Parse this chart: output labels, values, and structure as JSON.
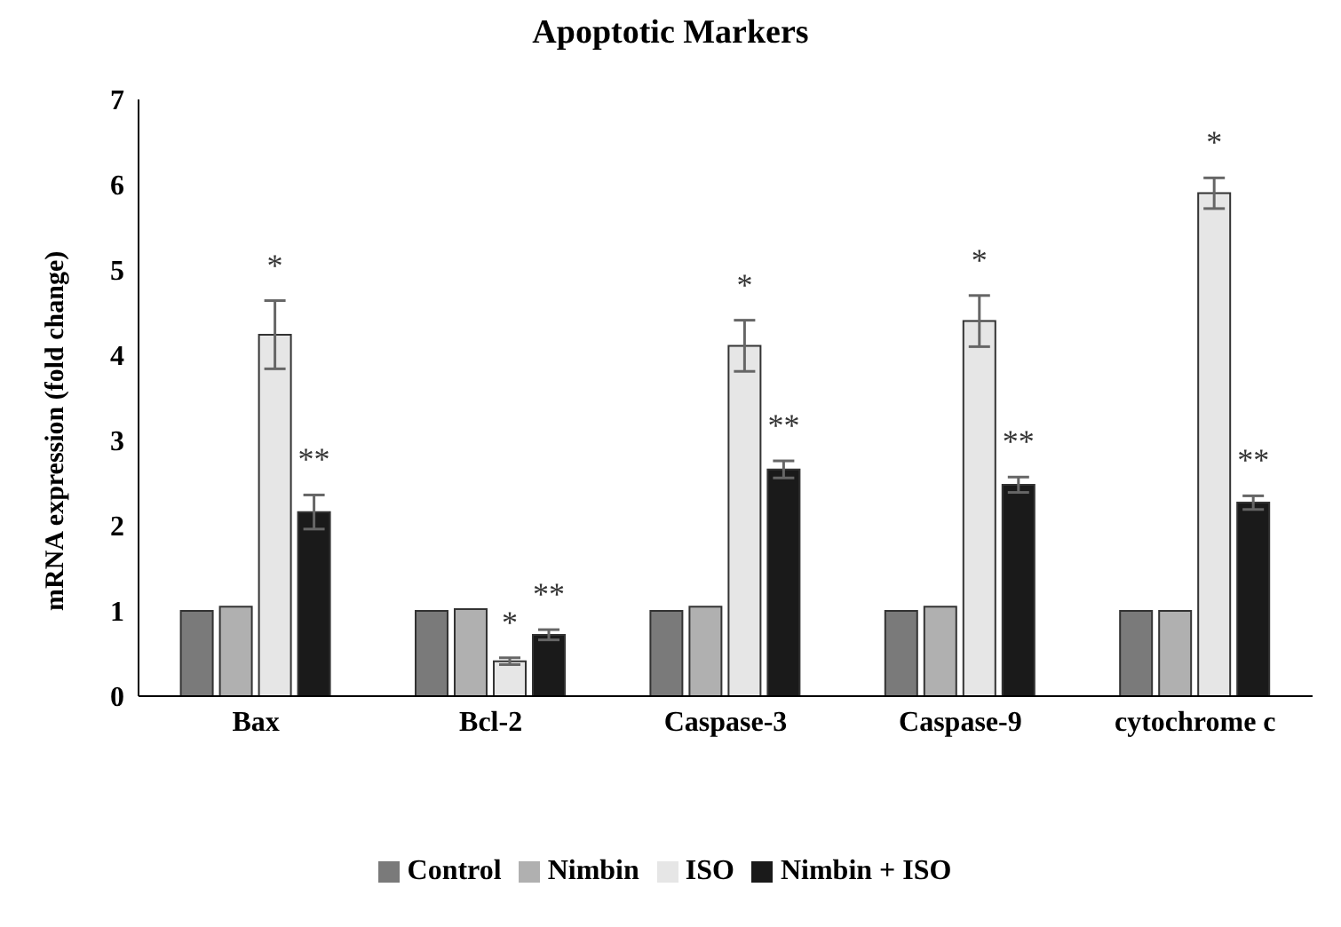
{
  "chart_data": {
    "type": "bar",
    "title": "Apoptotic Markers",
    "ylabel": "mRNA expression (fold change)",
    "categories": [
      "Bax",
      "Bcl-2",
      "Caspase-3",
      "Caspase-9",
      "cytochrome c"
    ],
    "series": [
      {
        "name": "Control",
        "color": "#7a7a7a",
        "values": [
          1,
          1,
          1,
          1,
          1
        ]
      },
      {
        "name": "Nimbin",
        "color": "#b0b0b0",
        "values": [
          1.05,
          1.02,
          1.05,
          1.05,
          1
        ]
      },
      {
        "name": "ISO",
        "color": "#e6e6e6",
        "values": [
          4.24,
          0.41,
          4.11,
          4.4,
          5.9
        ],
        "errors": [
          0.4,
          0.04,
          0.3,
          0.3,
          0.18
        ],
        "value_labels": [
          "*",
          "*",
          "*",
          "*",
          "*"
        ]
      },
      {
        "name": "Nimbin + ISO",
        "color": "#1a1a1a",
        "values": [
          2.16,
          0.72,
          2.66,
          2.48,
          2.27
        ],
        "errors": [
          0.2,
          0.06,
          0.1,
          0.09,
          0.08
        ],
        "value_labels": [
          "**",
          "**",
          "**",
          "**",
          "**"
        ]
      }
    ],
    "ylim": [
      0,
      7
    ],
    "yticks": [
      0,
      1,
      2,
      3,
      4,
      5,
      6,
      7
    ],
    "grid": false,
    "legend": "bottom"
  }
}
